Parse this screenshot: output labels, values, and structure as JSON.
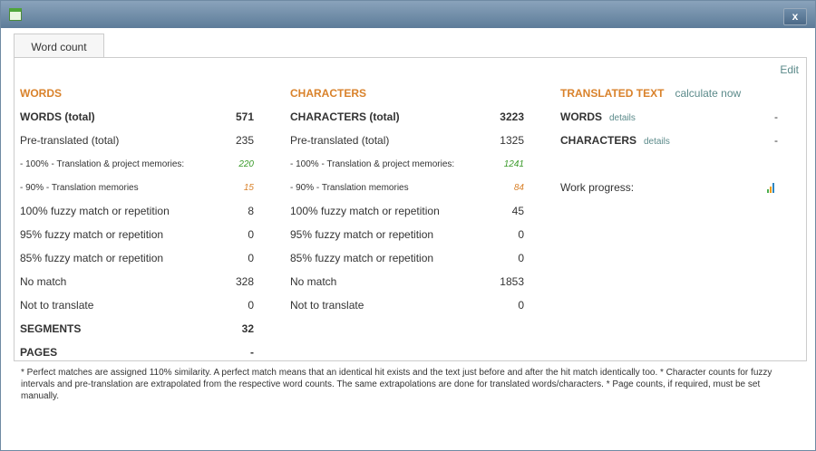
{
  "window": {
    "close_label": "x",
    "tab": "Word count",
    "edit": "Edit"
  },
  "words": {
    "header": "WORDS",
    "rows": [
      {
        "label": "WORDS (total)",
        "value": "571",
        "style": "b"
      },
      {
        "label": "Pre-translated (total)",
        "value": "235",
        "style": ""
      },
      {
        "label": "- 100% - Translation & project memories:",
        "value": "220",
        "style": "g"
      },
      {
        "label": "- 90% - Translation memories",
        "value": "15",
        "style": "o"
      },
      {
        "label": "100% fuzzy match or repetition",
        "value": "8",
        "style": ""
      },
      {
        "label": "95% fuzzy match or repetition",
        "value": "0",
        "style": ""
      },
      {
        "label": "85% fuzzy match or repetition",
        "value": "0",
        "style": ""
      },
      {
        "label": "No match",
        "value": "328",
        "style": ""
      },
      {
        "label": "Not to translate",
        "value": "0",
        "style": ""
      },
      {
        "label": "SEGMENTS",
        "value": "32",
        "style": "b"
      },
      {
        "label": "PAGES",
        "value": "-",
        "style": "b"
      }
    ]
  },
  "characters": {
    "header": "CHARACTERS",
    "rows": [
      {
        "label": "CHARACTERS (total)",
        "value": "3223",
        "style": "b"
      },
      {
        "label": "Pre-translated (total)",
        "value": "1325",
        "style": ""
      },
      {
        "label": "- 100% - Translation & project memories:",
        "value": "1241",
        "style": "g"
      },
      {
        "label": "- 90% - Translation memories",
        "value": "84",
        "style": "o"
      },
      {
        "label": "100% fuzzy match or repetition",
        "value": "45",
        "style": ""
      },
      {
        "label": "95% fuzzy match or repetition",
        "value": "0",
        "style": ""
      },
      {
        "label": "85% fuzzy match or repetition",
        "value": "0",
        "style": ""
      },
      {
        "label": "No match",
        "value": "1853",
        "style": ""
      },
      {
        "label": "Not to translate",
        "value": "0",
        "style": ""
      }
    ]
  },
  "translated": {
    "header": "TRANSLATED TEXT",
    "calculate": "calculate now",
    "words_label": "WORDS",
    "words_details": "details",
    "words_value": "-",
    "chars_label": "CHARACTERS",
    "chars_details": "details",
    "chars_value": "-",
    "progress_label": "Work progress:",
    "progress_icon": "bar-chart-icon"
  },
  "footer": "* Perfect matches are assigned 110% similarity. A perfect match means that an identical hit exists and the text just before and after the hit match identically too. * Character counts for fuzzy intervals and pre-translation are extrapolated from the respective word counts. The same extrapolations are done for translated words/characters. * Page counts, if required, must be set manually."
}
